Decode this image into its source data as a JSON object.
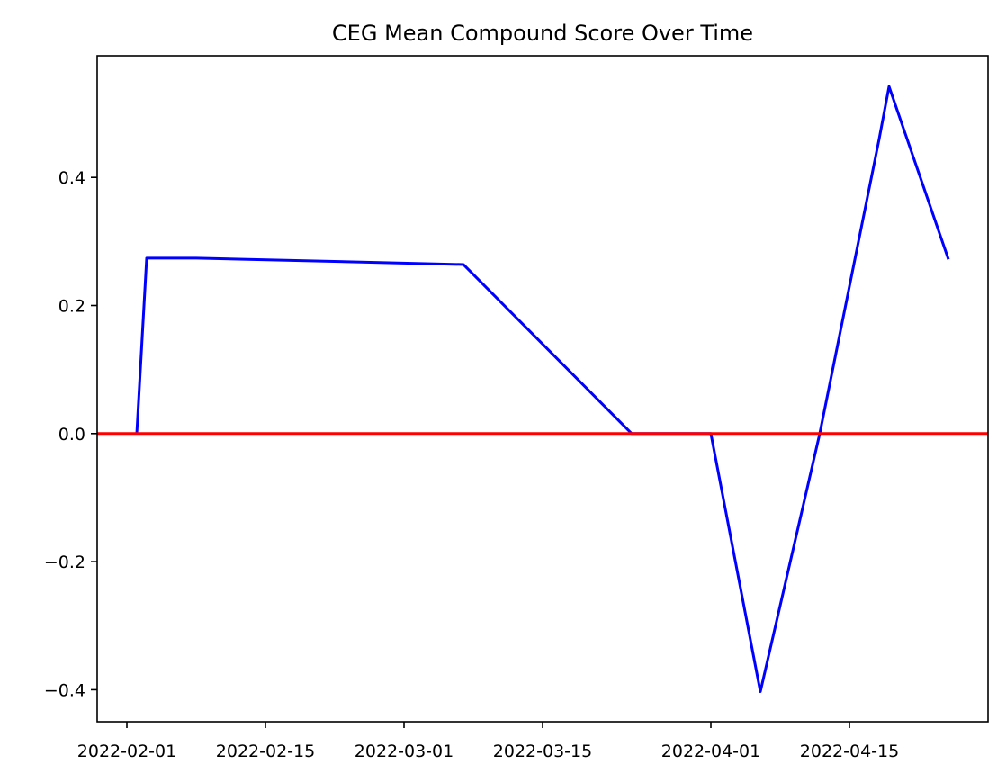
{
  "chart_data": {
    "type": "line",
    "title": "CEG Mean Compound Score Over Time",
    "xlabel": "",
    "ylabel": "",
    "x_axis_type": "date",
    "xlim": [
      "2022-01-29",
      "2022-04-29"
    ],
    "ylim": [
      -0.45,
      0.59
    ],
    "x_ticks": [
      "2022-02-01",
      "2022-02-15",
      "2022-03-01",
      "2022-03-15",
      "2022-04-01",
      "2022-04-15"
    ],
    "y_ticks": [
      -0.4,
      -0.2,
      0.0,
      0.2,
      0.4
    ],
    "y_tick_labels": [
      "−0.4",
      "−0.2",
      "0.0",
      "0.2",
      "0.4"
    ],
    "grid": false,
    "legend": "none",
    "series": [
      {
        "color": "#0000ff",
        "points": [
          {
            "x": "2022-02-02",
            "y": 0.0
          },
          {
            "x": "2022-02-03",
            "y": 0.274
          },
          {
            "x": "2022-02-08",
            "y": 0.274
          },
          {
            "x": "2022-03-07",
            "y": 0.264
          },
          {
            "x": "2022-03-24",
            "y": 0.0
          },
          {
            "x": "2022-04-01",
            "y": 0.0
          },
          {
            "x": "2022-04-06",
            "y": -0.403
          },
          {
            "x": "2022-04-12",
            "y": 0.0
          },
          {
            "x": "2022-04-18",
            "y": 0.46
          },
          {
            "x": "2022-04-19",
            "y": 0.542
          },
          {
            "x": "2022-04-25",
            "y": 0.272
          }
        ]
      }
    ],
    "reference_lines": [
      {
        "orientation": "horizontal",
        "y": 0.0,
        "color": "#ff0000"
      }
    ]
  }
}
